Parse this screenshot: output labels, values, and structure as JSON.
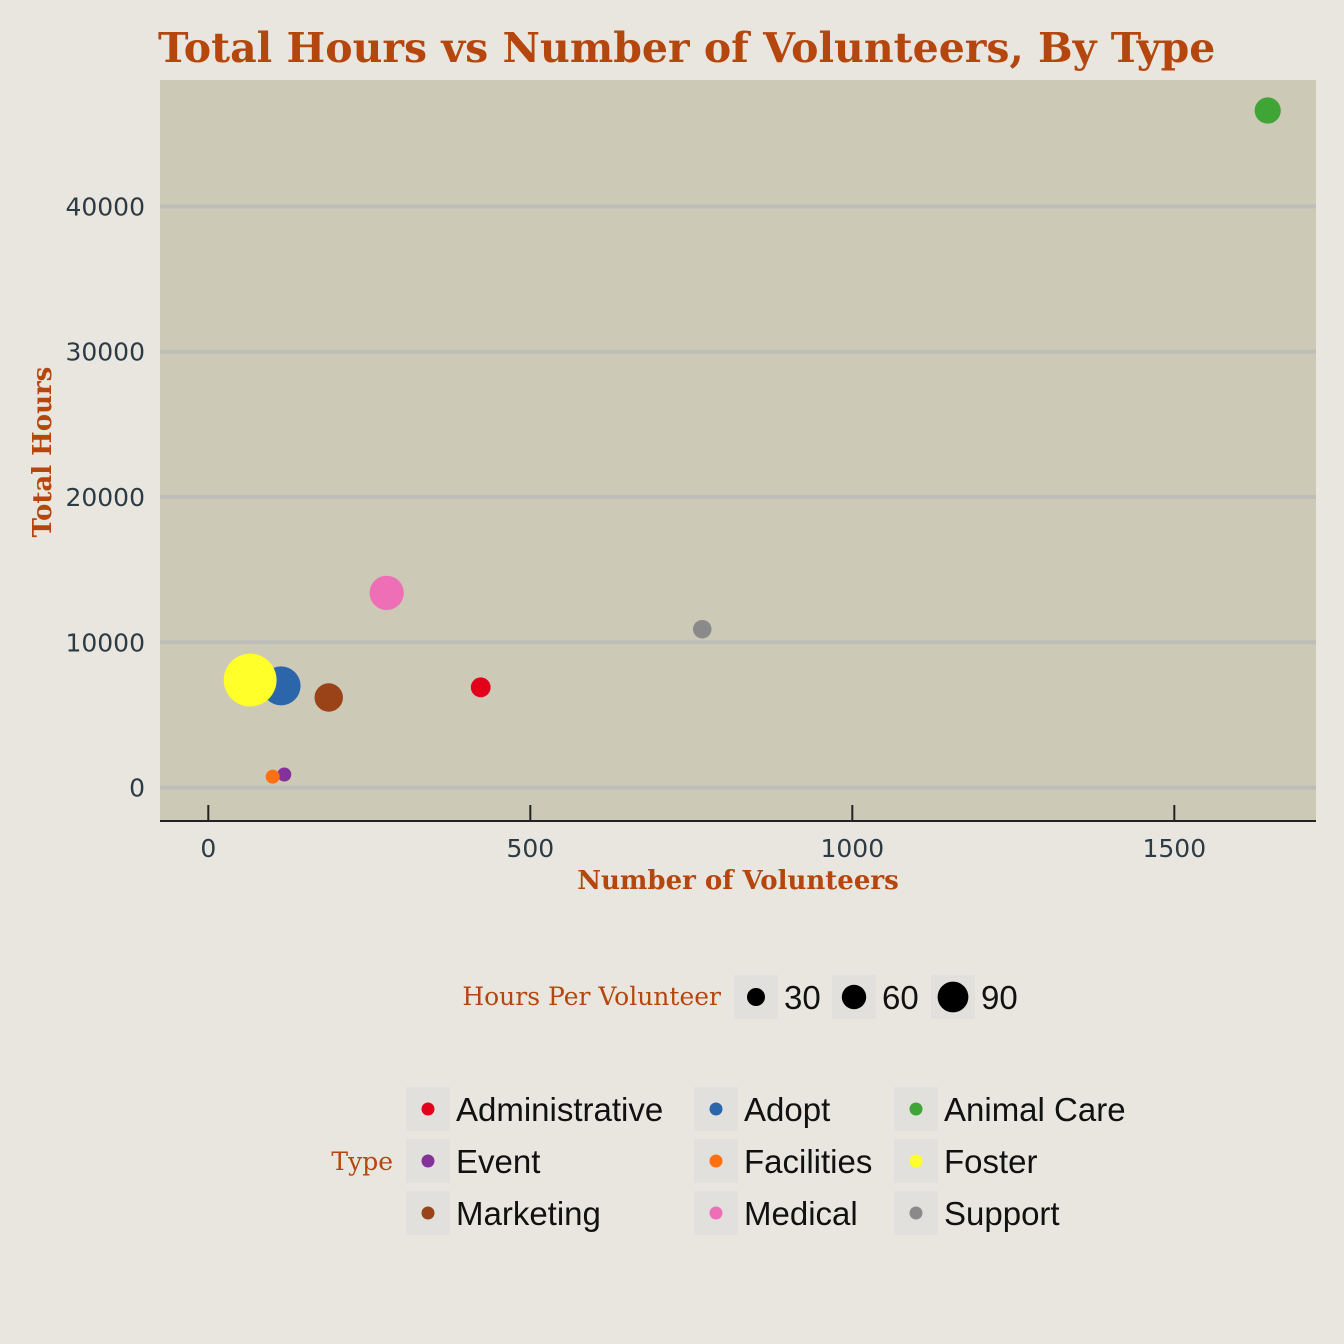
{
  "chart_data": {
    "type": "scatter",
    "title": "Total Hours vs Number of Volunteers, By Type",
    "xlabel": "Number of Volunteers",
    "ylabel": "Total Hours",
    "xlim": [
      -75,
      1720
    ],
    "ylim": [
      -2300,
      48700
    ],
    "x_ticks": [
      0,
      500,
      1000,
      1500
    ],
    "y_ticks": [
      0,
      10000,
      20000,
      30000,
      40000
    ],
    "grid": "horizontal",
    "size_legend": {
      "title": "Hours Per Volunteer",
      "values": [
        30,
        60,
        90
      ]
    },
    "color_legend": {
      "title": "Type",
      "position": "bottom",
      "entries": [
        {
          "name": "Administrative",
          "color": "#e3001b"
        },
        {
          "name": "Adopt",
          "color": "#2b65aa"
        },
        {
          "name": "Animal Care",
          "color": "#3fa535"
        },
        {
          "name": "Event",
          "color": "#85319c"
        },
        {
          "name": "Facilities",
          "color": "#ff7010"
        },
        {
          "name": "Foster",
          "color": "#ffff2a"
        },
        {
          "name": "Marketing",
          "color": "#9a4318"
        },
        {
          "name": "Medical",
          "color": "#ef6fb6"
        },
        {
          "name": "Support",
          "color": "#8a8a8a"
        }
      ]
    },
    "points": [
      {
        "type": "Administrative",
        "x": 423,
        "y": 6900,
        "hours_per_volunteer": 16
      },
      {
        "type": "Adopt",
        "x": 113,
        "y": 7000,
        "hours_per_volunteer": 62
      },
      {
        "type": "Animal Care",
        "x": 1645,
        "y": 46600,
        "hours_per_volunteer": 28
      },
      {
        "type": "Event",
        "x": 118,
        "y": 900,
        "hours_per_volunteer": 8
      },
      {
        "type": "Facilities",
        "x": 100,
        "y": 750,
        "hours_per_volunteer": 8
      },
      {
        "type": "Foster",
        "x": 65,
        "y": 7400,
        "hours_per_volunteer": 114
      },
      {
        "type": "Marketing",
        "x": 187,
        "y": 6200,
        "hours_per_volunteer": 33
      },
      {
        "type": "Medical",
        "x": 277,
        "y": 13400,
        "hours_per_volunteer": 48
      },
      {
        "type": "Support",
        "x": 767,
        "y": 10900,
        "hours_per_volunteer": 14
      }
    ]
  }
}
